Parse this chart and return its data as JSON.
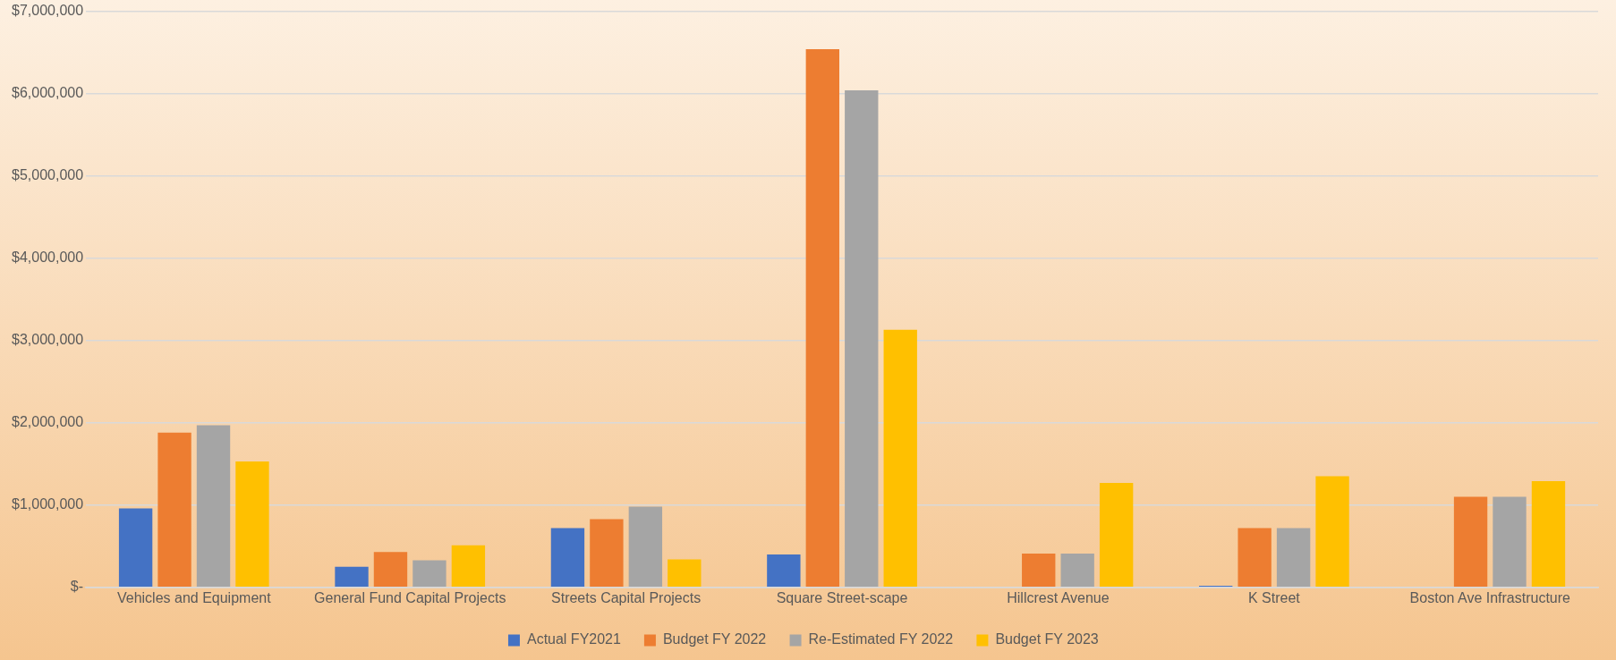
{
  "chart_data": {
    "type": "bar",
    "categories": [
      "Vehicles and Equipment",
      "General Fund Capital Projects",
      "Streets Capital Projects",
      "Square Street-scape",
      "Hillcrest Avenue",
      "K Street",
      "Boston Ave Infrastructure"
    ],
    "series": [
      {
        "name": "Actual FY2021",
        "color": "#4472c4",
        "values": [
          960000,
          250000,
          720000,
          400000,
          null,
          20000,
          null
        ]
      },
      {
        "name": "Budget FY 2022",
        "color": "#ed7d31",
        "values": [
          1880000,
          430000,
          830000,
          6540000,
          410000,
          720000,
          1100000
        ]
      },
      {
        "name": "Re-Estimated FY 2022",
        "color": "#a5a5a5",
        "values": [
          1970000,
          330000,
          980000,
          6040000,
          410000,
          720000,
          1100000
        ]
      },
      {
        "name": "Budget FY 2023",
        "color": "#ffc000",
        "values": [
          1530000,
          510000,
          340000,
          3130000,
          1270000,
          1350000,
          1290000
        ]
      }
    ],
    "ylim": [
      0,
      7000000
    ],
    "yticks": [
      {
        "value": 0,
        "label": "$-"
      },
      {
        "value": 1000000,
        "label": "$1,000,000"
      },
      {
        "value": 2000000,
        "label": "$2,000,000"
      },
      {
        "value": 3000000,
        "label": "$3,000,000"
      },
      {
        "value": 4000000,
        "label": "$4,000,000"
      },
      {
        "value": 5000000,
        "label": "$5,000,000"
      },
      {
        "value": 6000000,
        "label": "$6,000,000"
      },
      {
        "value": 7000000,
        "label": "$7,000,000"
      }
    ],
    "grid": "y",
    "legend": "bottom"
  }
}
